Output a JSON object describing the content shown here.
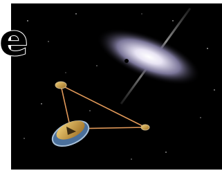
{
  "overlay_text": "e"
}
